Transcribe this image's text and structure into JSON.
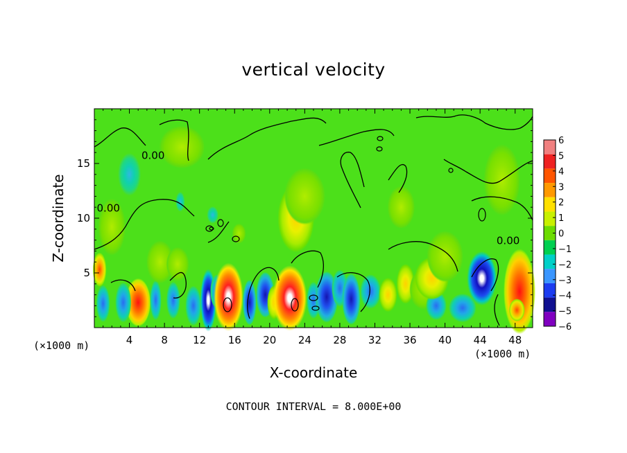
{
  "chart_data": {
    "type": "heatmap",
    "title": "vertical velocity",
    "xlabel": "X-coordinate",
    "ylabel": "Z-coordinate",
    "x_unit_left": "(×1000 m)",
    "x_unit_right": "(×1000 m)",
    "footer": "CONTOUR INTERVAL = 8.000E+00",
    "xlim": [
      0,
      50
    ],
    "ylim": [
      0,
      20
    ],
    "xticks": [
      4,
      8,
      12,
      16,
      20,
      24,
      28,
      32,
      36,
      40,
      44,
      48
    ],
    "yticks": [
      5,
      10,
      15
    ],
    "contour_labels": [
      {
        "text": "0.00",
        "x": 6.7,
        "y": 15.7
      },
      {
        "text": "0.00",
        "x": 1.6,
        "y": 10.9
      },
      {
        "text": "0.00",
        "x": 47.2,
        "y": 7.9
      }
    ],
    "colorbar": {
      "ticks": [
        "6",
        "5",
        "4",
        "3",
        "2",
        "1",
        "0",
        "−1",
        "−2",
        "−3",
        "−4",
        "−5",
        "−6"
      ],
      "colors": [
        "#f08080",
        "#ee2222",
        "#ff5500",
        "#ff9900",
        "#ffe000",
        "#c8f000",
        "#6cdc00",
        "#00d050",
        "#00d0c8",
        "#3a96ff",
        "#1c3cf0",
        "#101090",
        "#8000c0"
      ]
    },
    "background": "#4ce01a",
    "features": [
      {
        "x": 5.0,
        "z": 2.3,
        "w": 9,
        "sx": 1.1,
        "sz": 1.7
      },
      {
        "x": 3.3,
        "z": 2.3,
        "w": -3,
        "sx": 0.7,
        "sz": 1.4
      },
      {
        "x": 1.0,
        "z": 2.2,
        "w": -3,
        "sx": 0.6,
        "sz": 1.3
      },
      {
        "x": 7.0,
        "z": 2.5,
        "w": -2.5,
        "sx": 0.5,
        "sz": 1.4
      },
      {
        "x": 9.0,
        "z": 2.5,
        "w": -2.5,
        "sx": 0.6,
        "sz": 1.3
      },
      {
        "x": 11.3,
        "z": 2.0,
        "w": -2.5,
        "sx": 0.7,
        "sz": 1.4
      },
      {
        "x": 13.0,
        "z": 2.5,
        "w": -12,
        "sx": 0.7,
        "sz": 2.2
      },
      {
        "x": 14.0,
        "z": 3.3,
        "w": -3,
        "sx": 0.6,
        "sz": 1.2
      },
      {
        "x": 15.3,
        "z": 2.8,
        "w": 15,
        "sx": 1.3,
        "sz": 2.4
      },
      {
        "x": 17.7,
        "z": 2.3,
        "w": -4,
        "sx": 0.6,
        "sz": 1.6
      },
      {
        "x": 19.5,
        "z": 3.0,
        "w": -3.5,
        "sx": 0.8,
        "sz": 1.6
      },
      {
        "x": 20.5,
        "z": 2.3,
        "w": 2,
        "sx": 0.6,
        "sz": 1.2
      },
      {
        "x": 22.3,
        "z": 2.7,
        "w": 14,
        "sx": 1.5,
        "sz": 2.3
      },
      {
        "x": 25.0,
        "z": 2.5,
        "w": -2.5,
        "sx": 0.6,
        "sz": 1.3
      },
      {
        "x": 26.5,
        "z": 2.8,
        "w": -4,
        "sx": 1.0,
        "sz": 1.8
      },
      {
        "x": 28.0,
        "z": 3.6,
        "w": -3,
        "sx": 0.7,
        "sz": 1.3
      },
      {
        "x": 29.3,
        "z": 2.6,
        "w": -4.5,
        "sx": 0.8,
        "sz": 1.8
      },
      {
        "x": 31.5,
        "z": 3.3,
        "w": -2,
        "sx": 0.9,
        "sz": 1.2
      },
      {
        "x": 33.5,
        "z": 3.0,
        "w": 1.5,
        "sx": 0.8,
        "sz": 1.2
      },
      {
        "x": 35.5,
        "z": 4.0,
        "w": 2,
        "sx": 0.8,
        "sz": 1.4
      },
      {
        "x": 37.5,
        "z": 3.5,
        "w": 1.2,
        "sx": 1.2,
        "sz": 1.4
      },
      {
        "x": 39.0,
        "z": 2.0,
        "w": -2,
        "sx": 0.9,
        "sz": 1.0
      },
      {
        "x": 38.5,
        "z": 4.5,
        "w": 1.5,
        "sx": 1.5,
        "sz": 1.5
      },
      {
        "x": 44.2,
        "z": 4.5,
        "w": -13,
        "sx": 1.3,
        "sz": 1.9
      },
      {
        "x": 42.0,
        "z": 1.8,
        "w": -2.5,
        "sx": 1.2,
        "sz": 1.0
      },
      {
        "x": 48.5,
        "z": 3.3,
        "w": 7.5,
        "sx": 1.4,
        "sz": 3.0
      },
      {
        "x": 48.2,
        "z": 1.6,
        "w": 4,
        "sx": 0.7,
        "sz": 0.8
      },
      {
        "x": 23.0,
        "z": 10.0,
        "w": 2.5,
        "sx": 1.6,
        "sz": 2.4
      },
      {
        "x": 24.0,
        "z": 12.0,
        "w": 1.2,
        "sx": 1.8,
        "sz": 2.0
      },
      {
        "x": 7.5,
        "z": 6.0,
        "w": 1.2,
        "sx": 1.2,
        "sz": 1.5
      },
      {
        "x": 9.5,
        "z": 5.8,
        "w": 1.2,
        "sx": 1.0,
        "sz": 1.2
      },
      {
        "x": 2.0,
        "z": 9.2,
        "w": 0.9,
        "sx": 1.2,
        "sz": 2.0
      },
      {
        "x": 0.6,
        "z": 5.3,
        "w": 3.5,
        "sx": 0.6,
        "sz": 1.2
      },
      {
        "x": 40.0,
        "z": 6.5,
        "w": 0.9,
        "sx": 1.6,
        "sz": 1.8
      },
      {
        "x": 46.5,
        "z": 13.5,
        "w": 0.8,
        "sx": 1.6,
        "sz": 2.5
      },
      {
        "x": 35.0,
        "z": 11.0,
        "w": 0.8,
        "sx": 1.2,
        "sz": 1.5
      },
      {
        "x": 4.0,
        "z": 14.0,
        "w": -0.9,
        "sx": 1.0,
        "sz": 1.5
      },
      {
        "x": 10.0,
        "z": 16.5,
        "w": 0.6,
        "sx": 2.0,
        "sz": 1.5
      },
      {
        "x": 9.8,
        "z": 11.5,
        "w": -1.6,
        "sx": 0.4,
        "sz": 0.7
      },
      {
        "x": 13.5,
        "z": 10.3,
        "w": -1.0,
        "sx": 0.5,
        "sz": 0.6
      },
      {
        "x": 16.5,
        "z": 8.6,
        "w": 0.8,
        "sx": 0.6,
        "sz": 0.7
      }
    ]
  }
}
